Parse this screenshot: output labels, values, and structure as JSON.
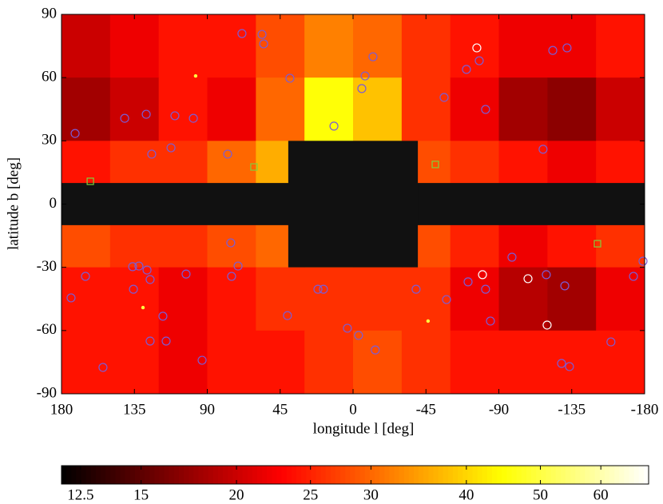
{
  "chart_data": {
    "type": "heatmap",
    "xlabel": "longitude l [deg]",
    "ylabel": "latitude b [deg]",
    "xlim": [
      180,
      -180
    ],
    "ylim": [
      -90,
      90
    ],
    "xticks": [
      180,
      135,
      90,
      45,
      0,
      -45,
      -90,
      -135,
      -180
    ],
    "yticks": [
      90,
      60,
      30,
      0,
      -30,
      -60,
      -90
    ],
    "xbins": [
      180,
      150,
      120,
      90,
      60,
      30,
      0,
      -30,
      -60,
      -90,
      -120,
      -150,
      -180
    ],
    "ybins": [
      90,
      60,
      30,
      0,
      -30,
      -60,
      -90
    ],
    "z": [
      [
        20,
        22,
        24,
        24,
        28,
        32,
        30,
        26,
        24,
        22,
        22,
        24
      ],
      [
        18,
        20,
        24,
        22,
        30,
        45,
        38,
        26,
        22,
        18,
        17,
        20
      ],
      [
        24,
        26,
        26,
        30,
        36,
        40,
        36,
        28,
        26,
        24,
        22,
        24
      ],
      [
        28,
        26,
        26,
        28,
        30,
        32,
        30,
        28,
        25,
        22,
        24,
        26
      ],
      [
        24,
        24,
        22,
        24,
        26,
        26,
        26,
        26,
        22,
        19,
        18,
        22
      ],
      [
        24,
        24,
        22,
        24,
        24,
        26,
        28,
        26,
        24,
        24,
        24,
        24
      ]
    ],
    "colormap": "hot",
    "color_scale": "log",
    "clim": [
      11.8,
      69.3
    ],
    "colorbar_ticks": [
      12.5,
      15,
      20,
      25,
      30,
      40,
      50,
      60
    ],
    "mask_color": "#111111",
    "masks": [
      {
        "lon": [
          180,
          -180
        ],
        "lat": [
          -10,
          10
        ]
      },
      {
        "lon": [
          40,
          -40
        ],
        "lat": [
          -30,
          30
        ]
      }
    ],
    "series": [
      {
        "color": "#7a5cd6",
        "marker": "circle",
        "x": [
          68.6,
          56.2,
          55.2,
          39,
          -12.3,
          -7.4,
          -5.4,
          11.8,
          171.6,
          141,
          127.7,
          124.3,
          110,
          112.4,
          98.6,
          77.4,
          -56.2,
          -70,
          -77.9,
          -81.8,
          -123.3,
          -132.1,
          -117.3,
          165.2,
          174.1,
          154.4,
          136.1,
          132.2,
          127.2,
          135.6,
          125.3,
          125.3,
          115.4,
          117.4,
          103.1,
          93.2,
          75.5,
          71,
          75,
          40.5,
          21.7,
          18.3,
          3.5,
          -3.4,
          -13.7,
          -38.9,
          -57.7,
          -71,
          -81.8,
          -84.8,
          -98.1,
          -119.3,
          -130.7,
          -128.7,
          -133.6,
          -159.2,
          -173.1,
          -179
        ],
        "y": [
          80.9,
          80.5,
          76,
          59.7,
          69.9,
          60.8,
          54.8,
          37,
          33.5,
          40.7,
          42.6,
          23.7,
          41.9,
          26.7,
          40.7,
          23.7,
          50.6,
          63.9,
          68,
          44.9,
          72.9,
          74.1,
          26,
          -34.3,
          -44.5,
          -77.5,
          -29.7,
          -29.4,
          -31.3,
          -40.4,
          -35.8,
          -65,
          -65,
          -53.2,
          -33.2,
          -74.1,
          -18.4,
          -29.4,
          -34.3,
          -52.9,
          -40.4,
          -40.4,
          -58.9,
          -62.3,
          -69.2,
          -40.4,
          -45.3,
          -36.9,
          -40.4,
          -55.5,
          -25.2,
          -33.5,
          -38.8,
          -75.6,
          -77.1,
          -65.4,
          -34.3,
          -27.1
        ]
      },
      {
        "color": "#ffffff",
        "marker": "circle",
        "x": [
          -76.4,
          -79.9,
          -108,
          -119.8
        ],
        "y": [
          74.1,
          -33.5,
          -35.4,
          -57.4
        ]
      },
      {
        "color": "#7fd13b",
        "marker": "square",
        "x": [
          162.2,
          61.2,
          -50.8,
          -150.9
        ],
        "y": [
          10.8,
          17.6,
          18.8,
          -18.8
        ]
      },
      {
        "color": "#ffff40",
        "marker": "dot",
        "x": [
          97.2,
          -46.3,
          129.7
        ],
        "y": [
          60.8,
          -55.5,
          -49.1
        ]
      }
    ]
  }
}
